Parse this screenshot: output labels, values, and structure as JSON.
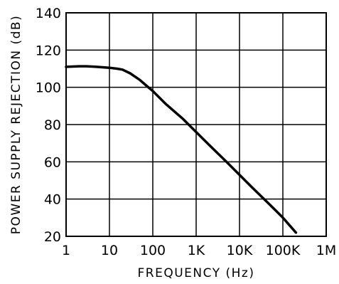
{
  "chart_data": {
    "type": "line",
    "title": "",
    "xlabel": "FREQUENCY (Hz)",
    "ylabel": "POWER SUPPLY REJECTION (dB)",
    "x_scale": "log",
    "xlim": [
      1,
      1000000
    ],
    "ylim": [
      20,
      140
    ],
    "x_ticks": [
      1,
      10,
      100,
      1000,
      10000,
      100000,
      1000000
    ],
    "x_tick_labels": [
      "1",
      "10",
      "100",
      "1K",
      "10K",
      "100K",
      "1M"
    ],
    "y_ticks": [
      20,
      40,
      60,
      80,
      100,
      120,
      140
    ],
    "y_tick_labels": [
      "20",
      "40",
      "60",
      "80",
      "100",
      "120",
      "140"
    ],
    "grid": true,
    "legend": "none",
    "series": [
      {
        "x": [
          1,
          2,
          3,
          5,
          10,
          15,
          20,
          30,
          50,
          70,
          100,
          200,
          500,
          1000,
          2000,
          5000,
          10000,
          20000,
          50000,
          100000,
          200000
        ],
        "y": [
          111,
          111.3,
          111.3,
          111,
          110.5,
          110,
          109.5,
          107.5,
          104,
          101,
          98,
          91,
          83,
          76,
          69,
          60,
          53,
          46,
          37,
          30,
          22
        ]
      }
    ],
    "colors": {
      "line": "#000000",
      "grid": "#000000",
      "background": "#ffffff"
    }
  }
}
